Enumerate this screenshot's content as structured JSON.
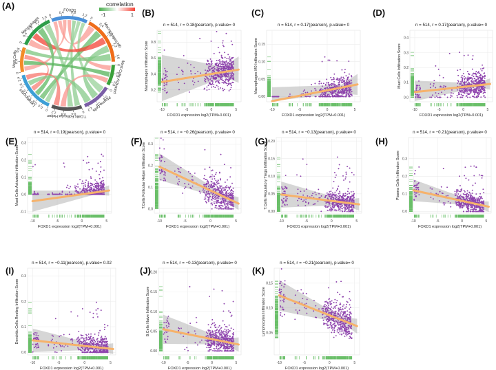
{
  "figure": {
    "chord": {
      "panel_label": "(A)",
      "legend_title": "correlation",
      "legend_min": "-1",
      "legend_max": "1",
      "colors": {
        "negative": "#4caf50",
        "positive": "#f44336"
      },
      "sectors": [
        {
          "name": "FOXD1",
          "color": "#4a90d9",
          "start": -20,
          "end": 25,
          "ticks": [
            "0",
            "0.4",
            "0.8",
            "1.2"
          ]
        },
        {
          "name": "Macrophages.M0",
          "color": "#ef6c1a",
          "start": 28,
          "end": 88,
          "ticks": [
            "0",
            "0.4",
            "0.8",
            "1.2",
            "1.6"
          ]
        },
        {
          "name": "Mast.Cells.Activated",
          "color": "#3aa03a",
          "start": 92,
          "end": 118,
          "ticks": [
            "0",
            "0.4",
            "0.8"
          ]
        },
        {
          "name": "Plasma.Cells",
          "color": "#7b5ea7",
          "start": 122,
          "end": 158,
          "ticks": [
            "0",
            "0.4",
            "0.8",
            "1.2"
          ]
        },
        {
          "name": "T.Cells.Follicular.Helper",
          "color": "#555555",
          "start": 162,
          "end": 200,
          "ticks": [
            "0",
            "0.4",
            "0.8",
            "1.2"
          ]
        },
        {
          "name": "Lymphocytes",
          "color": "#3d9fd6",
          "start": 204,
          "end": 255,
          "ticks": [
            "0",
            "0.4",
            "0.8",
            "1.2",
            "1.6",
            "2.0",
            "2.4"
          ]
        },
        {
          "name": "Mast.Cells",
          "color": "#f28c28",
          "start": 259,
          "end": 290,
          "ticks": [
            "0",
            "0.4",
            "0.8"
          ]
        },
        {
          "name": "Macrophages",
          "color": "#2e9e4a",
          "start": 294,
          "end": 337,
          "ticks": [
            "0",
            "0.4",
            "0.8",
            "1.2",
            "1.6"
          ]
        }
      ],
      "links": [
        {
          "from": 0,
          "to": 6,
          "value": 0.17
        },
        {
          "from": 0,
          "to": 1,
          "value": 0.17
        },
        {
          "from": 0,
          "to": 7,
          "value": 0.18
        },
        {
          "from": 0,
          "to": 2,
          "value": 0.19
        },
        {
          "from": 0,
          "to": 4,
          "value": -0.26
        },
        {
          "from": 0,
          "to": 5,
          "value": -0.21
        },
        {
          "from": 0,
          "to": 3,
          "value": -0.21
        },
        {
          "from": 1,
          "to": 5,
          "value": -0.45
        },
        {
          "from": 1,
          "to": 7,
          "value": 0.6
        },
        {
          "from": 1,
          "to": 3,
          "value": -0.3
        },
        {
          "from": 7,
          "to": 5,
          "value": -0.5
        },
        {
          "from": 7,
          "to": 4,
          "value": -0.25
        },
        {
          "from": 6,
          "to": 2,
          "value": -0.55
        },
        {
          "from": 6,
          "to": 5,
          "value": 0.3
        },
        {
          "from": 2,
          "to": 4,
          "value": 0.2
        },
        {
          "from": 3,
          "to": 5,
          "value": -0.3
        },
        {
          "from": 4,
          "to": 5,
          "value": 0.35
        },
        {
          "from": 1,
          "to": 6,
          "value": -0.35
        }
      ]
    },
    "panels": [
      {
        "label": "(B)",
        "stat": "n = 514, r = 0.18(pearson), p.value= 0",
        "ylabel": "Macrophages Infiltration Score",
        "xlabel": "FOXD1 expression log2(TPM+0.001)",
        "yticks": [
          "0.2",
          "0.4",
          "0.6",
          "0.8"
        ],
        "ymin": 0.05,
        "ymax": 0.95,
        "intercept": 0.4,
        "slope": 0.01,
        "band": 0.11,
        "spread": 0.13,
        "lowCap": 0.1,
        "seed": 11
      },
      {
        "label": "(C)",
        "stat": "n = 514, r = 0.17(pearson), p.value= 0",
        "ylabel": "Macrophages M0 Infiltration Score",
        "xlabel": "FOXD1 expression log2(TPM+0.001)",
        "yticks": [
          "0.00",
          "0.05",
          "0.10",
          "0.15"
        ],
        "ymin": -0.015,
        "ymax": 0.19,
        "intercept": 0.01,
        "slope": 0.0045,
        "band": 0.02,
        "spread": 0.025,
        "lowCap": 0.0,
        "seed": 23
      },
      {
        "label": "(D)",
        "stat": "n = 514, r = 0.17(pearson), p.value= 0",
        "ylabel": "Mast Cells Infiltration Score",
        "xlabel": "FOXD1 expression log2(TPM+0.001)",
        "yticks": [
          "0.0",
          "0.1",
          "0.2",
          "0.3",
          "0.4"
        ],
        "ymin": -0.03,
        "ymax": 0.45,
        "intercept": 0.07,
        "slope": 0.0035,
        "band": 0.025,
        "spread": 0.06,
        "lowCap": 0.0,
        "seed": 37
      },
      {
        "label": "(E)",
        "stat": "n = 514, r = 0.19(pearson), p.value= 0",
        "ylabel": "Mast Cells Activated Infiltration Score",
        "xlabel": "FOXD1 expression log2(TPM+0.001)",
        "yticks": [
          "-0.1",
          "0.0",
          "0.1",
          "0.2",
          "0.3"
        ],
        "ymin": -0.11,
        "ymax": 0.33,
        "intercept": 0.0,
        "slope": 0.004,
        "band": 0.02,
        "spread": 0.045,
        "lowCap": 0.0,
        "seed": 41
      },
      {
        "label": "(F)",
        "stat": "n = 514, r = −0.26(pearson), p.value= 0",
        "ylabel": "T.Cells Follicular Helper Infiltration Score",
        "xlabel": "FOXD1 expression log2(TPM+0.001)",
        "yticks": [
          "0.0",
          "0.1",
          "0.2",
          "0.3"
        ],
        "ymin": -0.02,
        "ymax": 0.33,
        "intercept": 0.085,
        "slope": -0.011,
        "band": 0.02,
        "spread": 0.05,
        "lowCap": 0.0,
        "seed": 53
      },
      {
        "label": "(G)",
        "stat": "n = 514, r = −0.13(pearson), p.value= 0",
        "ylabel": "T.Cells Regulatory Tregs Infiltration Score",
        "xlabel": "FOXD1 expression log2(TPM+0.001)",
        "yticks": [
          "0.00",
          "0.05",
          "0.10",
          "0.15",
          "0.20"
        ],
        "ymin": -0.005,
        "ymax": 0.21,
        "intercept": 0.03,
        "slope": -0.0018,
        "band": 0.012,
        "spread": 0.02,
        "lowCap": 0.0,
        "seed": 67
      },
      {
        "label": "(H)",
        "stat": "n = 514, r = −0.21(pearson), p.value= 0",
        "ylabel": "Plasma Cells Infiltration Score",
        "xlabel": "FOXD1 expression log2(TPM+0.001)",
        "yticks": [
          "0.0",
          "0.1",
          "0.2",
          "0.3"
        ],
        "ymin": -0.01,
        "ymax": 0.42,
        "intercept": 0.06,
        "slope": -0.006,
        "band": 0.02,
        "spread": 0.04,
        "lowCap": 0.0,
        "seed": 79
      },
      {
        "label": "(I)",
        "stat": "n = 514, r = −0.11(pearson), p.value= 0.02",
        "ylabel": "Dendritic.Cells.Resting Infiltration Score",
        "xlabel": "FOXD1 expression log2(TPM+0.001)",
        "yticks": [
          "0.0",
          "0.1",
          "0.2",
          "0.3"
        ],
        "ymin": -0.01,
        "ymax": 0.33,
        "intercept": 0.025,
        "slope": -0.0022,
        "band": 0.015,
        "spread": 0.03,
        "lowCap": 0.0,
        "seed": 83
      },
      {
        "label": "(J)",
        "stat": "n = 514, r = −0.13(pearson), p.value= 0",
        "ylabel": "B.Cells Naive Infiltration Score",
        "xlabel": "FOXD1 expression log2(TPM+0.001)",
        "yticks": [
          "0.00",
          "0.05",
          "0.10",
          "0.15",
          "0.20"
        ],
        "ymin": -0.01,
        "ymax": 0.21,
        "intercept": 0.03,
        "slope": -0.0025,
        "band": 0.012,
        "spread": 0.025,
        "lowCap": 0.0,
        "seed": 97
      },
      {
        "label": "(K)",
        "stat": "n = 514, r = −0.21(pearson), p.value= 0",
        "ylabel": "Lymphocytes Infiltration Score",
        "xlabel": "FOXD1 expression log2(TPM+0.001)",
        "yticks": [
          "0.05",
          "0.10",
          "0.15"
        ],
        "ymin": 0.005,
        "ymax": 0.18,
        "intercept": 0.085,
        "slope": -0.004,
        "band": 0.01,
        "spread": 0.022,
        "lowCap": 0.02,
        "seed": 101
      }
    ]
  },
  "chart_data": [
    {
      "type": "chord",
      "title": "(A)",
      "legend": "correlation",
      "range": [
        -1,
        1
      ],
      "sectors": [
        "FOXD1",
        "Macrophages.M0",
        "Mast.Cells.Activated",
        "Plasma.Cells",
        "T.Cells.Follicular.Helper",
        "Lymphocytes",
        "Mast.Cells",
        "Macrophages"
      ]
    },
    {
      "type": "scatter",
      "panel": "(B)",
      "n": 514,
      "r": 0.18,
      "method": "pearson",
      "p_value": "0",
      "xlabel": "FOXD1 expression log2(TPM+0.001)",
      "ylabel": "Macrophages Infiltration Score",
      "xlim": [
        -10,
        5
      ],
      "ylim": [
        0.05,
        0.95
      ]
    },
    {
      "type": "scatter",
      "panel": "(C)",
      "n": 514,
      "r": 0.17,
      "method": "pearson",
      "p_value": "0",
      "xlabel": "FOXD1 expression log2(TPM+0.001)",
      "ylabel": "Macrophages M0 Infiltration Score",
      "xlim": [
        -10,
        5
      ],
      "ylim": [
        -0.015,
        0.19
      ]
    },
    {
      "type": "scatter",
      "panel": "(D)",
      "n": 514,
      "r": 0.17,
      "method": "pearson",
      "p_value": "0",
      "xlabel": "FOXD1 expression log2(TPM+0.001)",
      "ylabel": "Mast Cells Infiltration Score",
      "xlim": [
        -10,
        5
      ],
      "ylim": [
        -0.03,
        0.45
      ]
    },
    {
      "type": "scatter",
      "panel": "(E)",
      "n": 514,
      "r": 0.19,
      "method": "pearson",
      "p_value": "0",
      "xlabel": "FOXD1 expression log2(TPM+0.001)",
      "ylabel": "Mast Cells Activated Infiltration Score",
      "xlim": [
        -10,
        5
      ],
      "ylim": [
        -0.11,
        0.33
      ]
    },
    {
      "type": "scatter",
      "panel": "(F)",
      "n": 514,
      "r": -0.26,
      "method": "pearson",
      "p_value": "0",
      "xlabel": "FOXD1 expression log2(TPM+0.001)",
      "ylabel": "T.Cells Follicular Helper Infiltration Score",
      "xlim": [
        -10,
        5
      ],
      "ylim": [
        -0.02,
        0.33
      ]
    },
    {
      "type": "scatter",
      "panel": "(G)",
      "n": 514,
      "r": -0.13,
      "method": "pearson",
      "p_value": "0",
      "xlabel": "FOXD1 expression log2(TPM+0.001)",
      "ylabel": "T.Cells Regulatory Tregs Infiltration Score",
      "xlim": [
        -10,
        5
      ],
      "ylim": [
        -0.005,
        0.21
      ]
    },
    {
      "type": "scatter",
      "panel": "(H)",
      "n": 514,
      "r": -0.21,
      "method": "pearson",
      "p_value": "0",
      "xlabel": "FOXD1 expression log2(TPM+0.001)",
      "ylabel": "Plasma Cells Infiltration Score",
      "xlim": [
        -10,
        5
      ],
      "ylim": [
        -0.01,
        0.42
      ]
    },
    {
      "type": "scatter",
      "panel": "(I)",
      "n": 514,
      "r": -0.11,
      "method": "pearson",
      "p_value": "0.02",
      "xlabel": "FOXD1 expression log2(TPM+0.001)",
      "ylabel": "Dendritic.Cells.Resting Infiltration Score",
      "xlim": [
        -10,
        5
      ],
      "ylim": [
        -0.01,
        0.33
      ]
    },
    {
      "type": "scatter",
      "panel": "(J)",
      "n": 514,
      "r": -0.13,
      "method": "pearson",
      "p_value": "0",
      "xlabel": "FOXD1 expression log2(TPM+0.001)",
      "ylabel": "B.Cells Naive Infiltration Score",
      "xlim": [
        -10,
        5
      ],
      "ylim": [
        -0.01,
        0.21
      ]
    },
    {
      "type": "scatter",
      "panel": "(K)",
      "n": 514,
      "r": -0.21,
      "method": "pearson",
      "p_value": "0",
      "xlabel": "FOXD1 expression log2(TPM+0.001)",
      "ylabel": "Lymphocytes Infiltration Score",
      "xlim": [
        -10,
        5
      ],
      "ylim": [
        0.005,
        0.18
      ]
    }
  ]
}
